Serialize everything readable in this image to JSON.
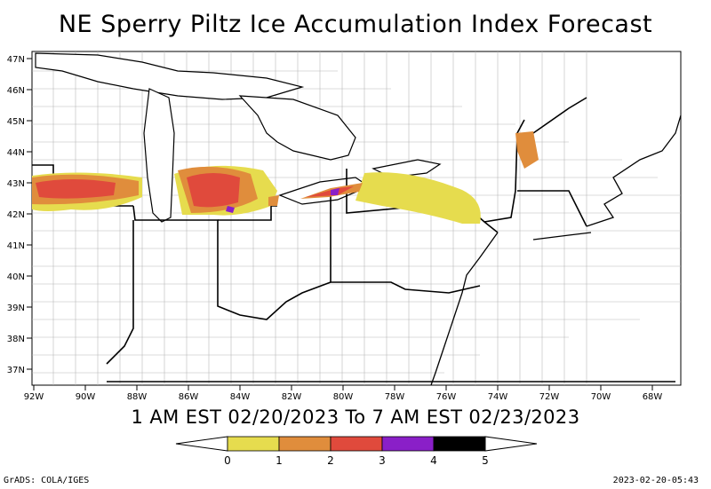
{
  "title": "NE Sperry Piltz Ice Accumulation Index Forecast",
  "period": "1 AM EST 02/20/2023 To 7 AM EST 02/23/2023",
  "footer_left": "GrADS: COLA/IGES",
  "footer_right": "2023-02-20-05:43",
  "lat_labels": [
    "47N",
    "46N",
    "45N",
    "44N",
    "43N",
    "42N",
    "41N",
    "40N",
    "39N",
    "38N",
    "37N"
  ],
  "lon_labels": [
    "92W",
    "90W",
    "88W",
    "86W",
    "84W",
    "82W",
    "80W",
    "78W",
    "76W",
    "74W",
    "72W",
    "70W",
    "68W"
  ],
  "legend": {
    "labels": [
      "0",
      "1",
      "2",
      "3",
      "4",
      "5"
    ],
    "colors": [
      "#e6dc4e",
      "#e08d3c",
      "#e04a3c",
      "#8a1fc8",
      "#000000"
    ]
  }
}
